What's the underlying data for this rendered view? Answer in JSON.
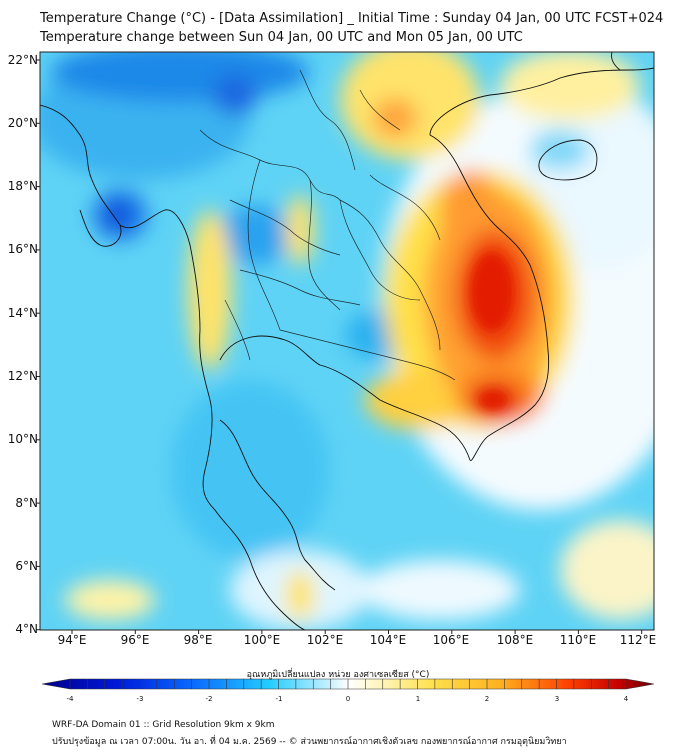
{
  "title": {
    "line1": "Temperature Change (°C) - [Data Assimilation] _ Initial Time : Sunday 04 Jan, 00 UTC FCST+024",
    "line2": "Temperature change between Sun 04 Jan, 00 UTC and Mon 05 Jan, 00 UTC"
  },
  "axes": {
    "lat_labels": [
      "22°N",
      "20°N",
      "18°N",
      "16°N",
      "14°N",
      "12°N",
      "10°N",
      "8°N",
      "6°N",
      "4°N"
    ],
    "lon_labels": [
      "94°E",
      "96°E",
      "98°E",
      "100°E",
      "102°E",
      "104°E",
      "106°E",
      "108°E",
      "110°E",
      "112°E"
    ]
  },
  "colorbar": {
    "title": "อุณหภูมิเปลี่ยนแปลง หน่วย องศาเซลเซียส (°C)",
    "labels": [
      "-4",
      "-3",
      "-2",
      "-1",
      "0",
      "1",
      "2",
      "3",
      "4"
    ],
    "colors": {
      "deep_blue": "#00008b",
      "blue": "#0040ff",
      "cyan": "#1fd2ff",
      "light": "#e8f8ff",
      "yellow": "#ffe04a",
      "orange": "#ff8c1a",
      "red": "#e60000",
      "dark_red": "#6b0000"
    }
  },
  "footer": {
    "line1": "WRF-DA Domain 01 :: Grid Resolution 9km x 9km",
    "line2": "ปรับปรุงข้อมูล ณ เวลา 07:00น. วัน อา. ที่ 04 ม.ค. 2569 -- © ส่วนพยากรณ์อากาศเชิงตัวเลข กองพยากรณ์อากาศ กรมอุตุนิยมวิทยา"
  }
}
